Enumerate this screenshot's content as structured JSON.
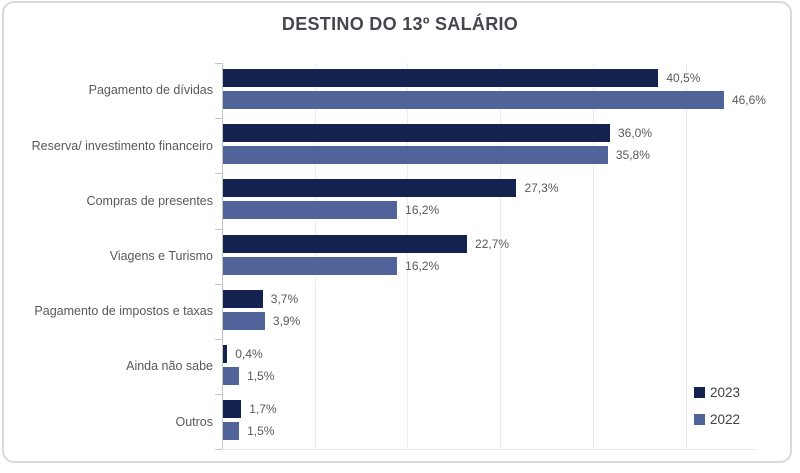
{
  "chart_data": {
    "type": "bar",
    "orientation": "horizontal",
    "title": "DESTINO DO 13º SALÁRIO",
    "categories": [
      "Pagamento de dívidas",
      "Reserva/ investimento financeiro",
      "Compras de presentes",
      "Viagens e Turismo",
      "Pagamento de impostos e taxas",
      "Ainda não sabe",
      "Outros"
    ],
    "series": [
      {
        "name": "2023",
        "color": "#142250",
        "values": [
          40.5,
          36.0,
          27.3,
          22.7,
          3.7,
          0.4,
          1.7
        ],
        "labels": [
          "40,5%",
          "36,0%",
          "27,3%",
          "22,7%",
          "3,7%",
          "0,4%",
          "1,7%"
        ]
      },
      {
        "name": "2022",
        "color": "#50649a",
        "values": [
          46.6,
          35.8,
          16.2,
          16.2,
          3.9,
          1.5,
          1.5
        ],
        "labels": [
          "46,6%",
          "35,8%",
          "16,2%",
          "16,2%",
          "3,9%",
          "1,5%",
          "1,5%"
        ]
      }
    ],
    "value_suffix": "%",
    "decimal_separator": ",",
    "xlim": [
      0,
      50
    ],
    "grid": "vertical-faint",
    "data_labels": "outside-end",
    "legend_position": "bottom-right",
    "legend_entries": [
      "2023",
      "2022"
    ]
  }
}
